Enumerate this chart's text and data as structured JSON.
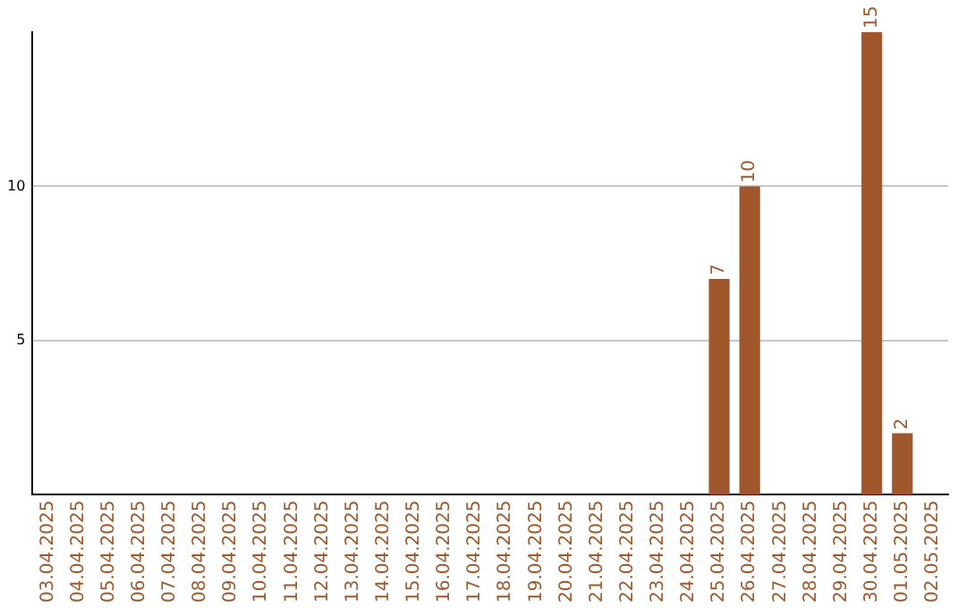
{
  "chart_data": {
    "type": "bar",
    "categories": [
      "03.04.2025",
      "04.04.2025",
      "05.04.2025",
      "06.04.2025",
      "07.04.2025",
      "08.04.2025",
      "09.04.2025",
      "10.04.2025",
      "11.04.2025",
      "12.04.2025",
      "13.04.2025",
      "14.04.2025",
      "15.04.2025",
      "16.04.2025",
      "17.04.2025",
      "18.04.2025",
      "19.04.2025",
      "20.04.2025",
      "21.04.2025",
      "22.04.2025",
      "23.04.2025",
      "24.04.2025",
      "25.04.2025",
      "26.04.2025",
      "27.04.2025",
      "28.04.2025",
      "29.04.2025",
      "30.04.2025",
      "01.05.2025",
      "02.05.2025"
    ],
    "values": [
      null,
      null,
      null,
      null,
      null,
      null,
      null,
      null,
      null,
      null,
      null,
      null,
      null,
      null,
      null,
      null,
      null,
      null,
      null,
      null,
      null,
      null,
      7,
      10,
      null,
      null,
      null,
      15,
      2,
      null
    ],
    "color": "#a0572b",
    "ylim": [
      0,
      15
    ],
    "yticks": [
      5,
      10
    ],
    "grid": "y",
    "data_labels": true,
    "legend": false
  }
}
